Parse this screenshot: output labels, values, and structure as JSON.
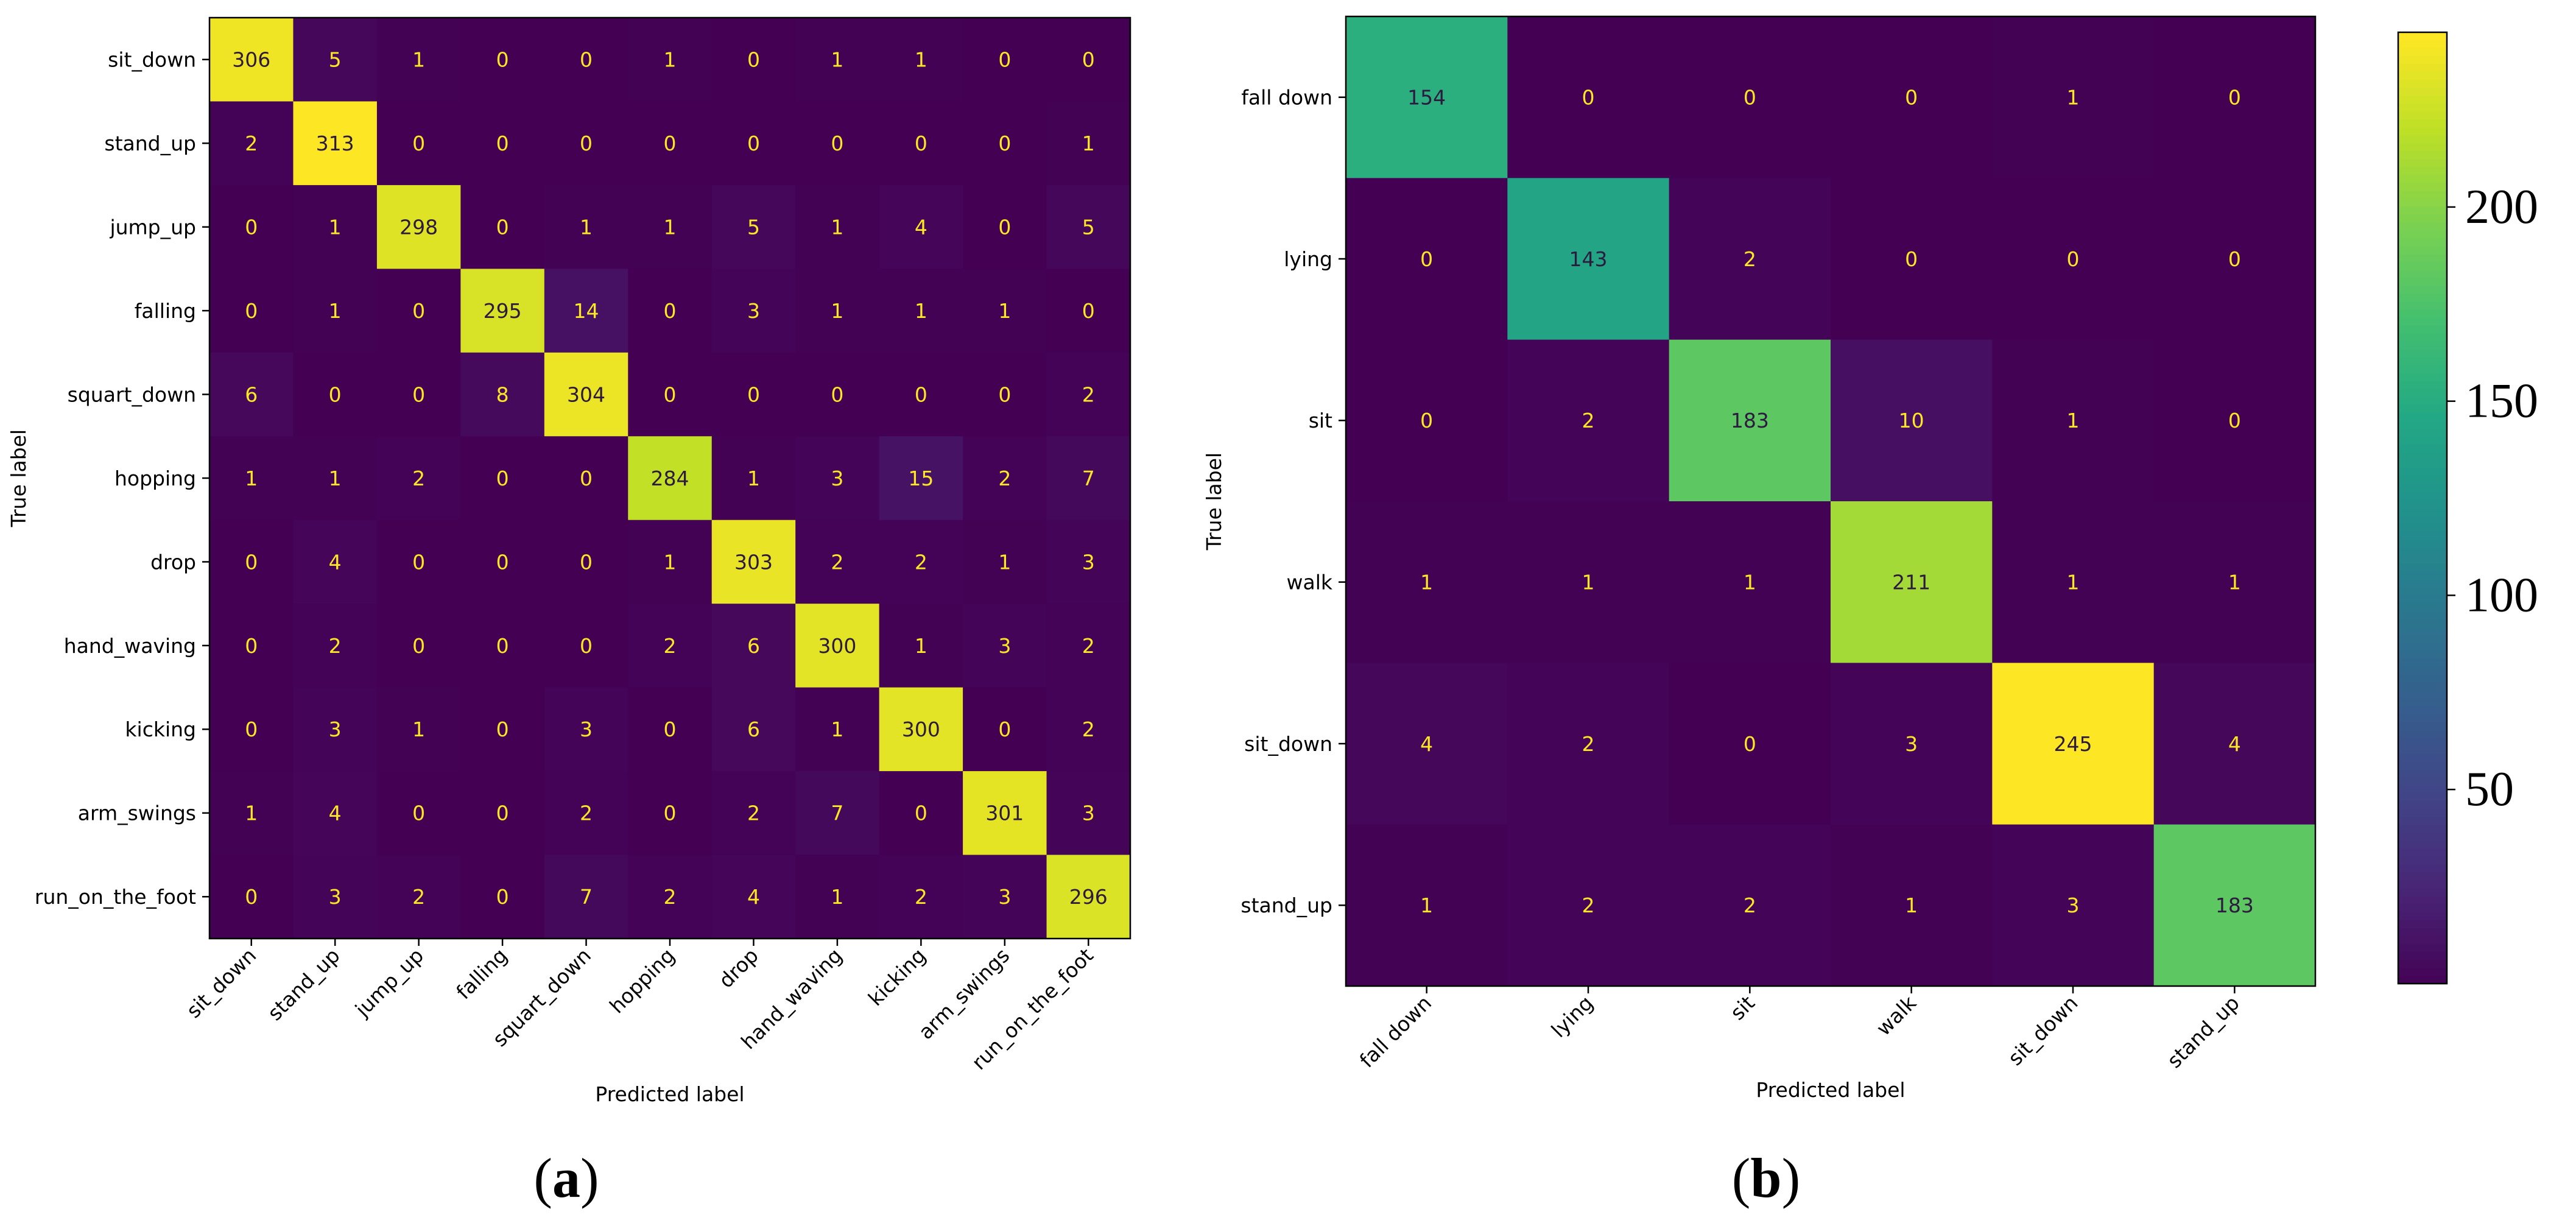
{
  "chart_data": [
    {
      "type": "heatmap",
      "caption_prefix": "(",
      "caption_letter": "a",
      "caption_suffix": ")",
      "xlabel": "Predicted label",
      "ylabel": "True label",
      "x_categories": [
        "sit_down",
        "stand_up",
        "jump_up",
        "falling",
        "squart_down",
        "hopping",
        "drop",
        "hand_waving",
        "kicking",
        "arm_swings",
        "run_on_the_foot"
      ],
      "y_categories": [
        "sit_down",
        "stand_up",
        "jump_up",
        "falling",
        "squart_down",
        "hopping",
        "drop",
        "hand_waving",
        "kicking",
        "arm_swings",
        "run_on_the_foot"
      ],
      "matrix": [
        [
          306,
          5,
          1,
          0,
          0,
          1,
          0,
          1,
          1,
          0,
          0
        ],
        [
          2,
          313,
          0,
          0,
          0,
          0,
          0,
          0,
          0,
          0,
          1
        ],
        [
          0,
          1,
          298,
          0,
          1,
          1,
          5,
          1,
          4,
          0,
          5
        ],
        [
          0,
          1,
          0,
          295,
          14,
          0,
          3,
          1,
          1,
          1,
          0
        ],
        [
          6,
          0,
          0,
          8,
          304,
          0,
          0,
          0,
          0,
          0,
          2
        ],
        [
          1,
          1,
          2,
          0,
          0,
          284,
          1,
          3,
          15,
          2,
          7
        ],
        [
          0,
          4,
          0,
          0,
          0,
          1,
          303,
          2,
          2,
          1,
          3
        ],
        [
          0,
          2,
          0,
          0,
          0,
          2,
          6,
          300,
          1,
          3,
          2
        ],
        [
          0,
          3,
          1,
          0,
          3,
          0,
          6,
          1,
          300,
          0,
          2
        ],
        [
          1,
          4,
          0,
          0,
          2,
          0,
          2,
          7,
          0,
          301,
          3
        ],
        [
          0,
          3,
          2,
          0,
          7,
          2,
          4,
          1,
          2,
          3,
          296
        ]
      ],
      "vmin": 0,
      "vmax": 313,
      "colormap": "viridis"
    },
    {
      "type": "heatmap",
      "caption_prefix": "(",
      "caption_letter": "b",
      "caption_suffix": ")",
      "xlabel": "Predicted label",
      "ylabel": "True label",
      "x_categories": [
        "fall down",
        "lying",
        "sit",
        "walk",
        "sit_down",
        "stand_up"
      ],
      "y_categories": [
        "fall down",
        "lying",
        "sit",
        "walk",
        "sit_down",
        "stand_up"
      ],
      "matrix": [
        [
          154,
          0,
          0,
          0,
          1,
          0
        ],
        [
          0,
          143,
          2,
          0,
          0,
          0
        ],
        [
          0,
          2,
          183,
          10,
          1,
          0
        ],
        [
          1,
          1,
          1,
          211,
          1,
          1
        ],
        [
          4,
          2,
          0,
          3,
          245,
          4
        ],
        [
          1,
          2,
          2,
          1,
          3,
          183
        ]
      ],
      "vmin": 0,
      "vmax": 245,
      "colormap": "viridis",
      "colorbar": {
        "ticks": [
          50,
          100,
          150,
          200
        ],
        "tick_labels": [
          "50",
          "100",
          "150",
          "200"
        ]
      }
    }
  ],
  "colors": {
    "text_on_dark": "#fde725",
    "text_on_light": "#2d1a3f",
    "axis": "#000000"
  }
}
